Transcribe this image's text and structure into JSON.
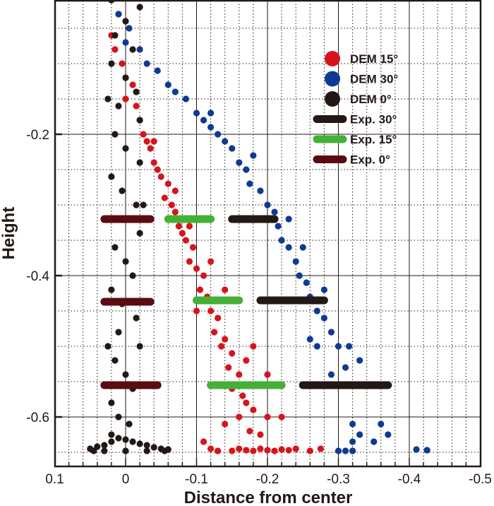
{
  "chart_data": {
    "type": "scatter",
    "xlabel": "Distance from center",
    "ylabel": "Height",
    "xlim": [
      0.1,
      -0.5
    ],
    "ylim": [
      -0.67,
      -0.01
    ],
    "xticks": [
      "0.1",
      "0",
      "-0.1",
      "-0.2",
      "-0.3",
      "-0.4",
      "-0.5"
    ],
    "xtick_values": [
      0.1,
      0,
      -0.1,
      -0.2,
      -0.3,
      -0.4,
      -0.5
    ],
    "yticks": [
      "-0.2",
      "-0.4",
      "-0.6"
    ],
    "ytick_values": [
      -0.2,
      -0.4,
      -0.6
    ],
    "grid": true,
    "legend_position": "top-right",
    "series": [
      {
        "name": "DEM 15°",
        "kind": "points",
        "color": "#d7141c",
        "points": [
          [
            0.01,
            -0.03
          ],
          [
            0.02,
            -0.06
          ],
          [
            0.015,
            -0.08
          ],
          [
            0.005,
            -0.1
          ],
          [
            0.0,
            -0.12
          ],
          [
            -0.01,
            -0.13
          ],
          [
            0.0,
            -0.15
          ],
          [
            -0.015,
            -0.16
          ],
          [
            -0.02,
            -0.18
          ],
          [
            -0.025,
            -0.2
          ],
          [
            -0.03,
            -0.21
          ],
          [
            -0.035,
            -0.22
          ],
          [
            -0.04,
            -0.24
          ],
          [
            -0.045,
            -0.25
          ],
          [
            -0.05,
            -0.26
          ],
          [
            -0.06,
            -0.27
          ],
          [
            -0.055,
            -0.29
          ],
          [
            -0.065,
            -0.3
          ],
          [
            -0.07,
            -0.31
          ],
          [
            -0.075,
            -0.33
          ],
          [
            -0.08,
            -0.34
          ],
          [
            -0.085,
            -0.35
          ],
          [
            -0.095,
            -0.36
          ],
          [
            -0.09,
            -0.38
          ],
          [
            -0.1,
            -0.39
          ],
          [
            -0.11,
            -0.4
          ],
          [
            -0.105,
            -0.42
          ],
          [
            -0.115,
            -0.43
          ],
          [
            -0.12,
            -0.45
          ],
          [
            -0.13,
            -0.46
          ],
          [
            -0.125,
            -0.48
          ],
          [
            -0.14,
            -0.49
          ],
          [
            -0.135,
            -0.5
          ],
          [
            -0.15,
            -0.51
          ],
          [
            -0.145,
            -0.53
          ],
          [
            -0.16,
            -0.54
          ],
          [
            -0.15,
            -0.56
          ],
          [
            -0.165,
            -0.57
          ],
          [
            -0.17,
            -0.58
          ],
          [
            -0.18,
            -0.59
          ],
          [
            -0.2,
            -0.6
          ],
          [
            -0.22,
            -0.6
          ],
          [
            -0.16,
            -0.6
          ],
          [
            -0.14,
            -0.61
          ],
          [
            -0.175,
            -0.62
          ],
          [
            -0.19,
            -0.625
          ],
          [
            -0.11,
            -0.635
          ],
          [
            -0.12,
            -0.645
          ],
          [
            -0.13,
            -0.648
          ],
          [
            -0.15,
            -0.648
          ],
          [
            -0.16,
            -0.645
          ],
          [
            -0.17,
            -0.647
          ],
          [
            -0.18,
            -0.648
          ],
          [
            -0.19,
            -0.645
          ],
          [
            -0.2,
            -0.647
          ],
          [
            -0.21,
            -0.648
          ],
          [
            -0.22,
            -0.646
          ],
          [
            -0.23,
            -0.647
          ],
          [
            -0.24,
            -0.645
          ],
          [
            -0.26,
            -0.648
          ],
          [
            -0.275,
            -0.645
          ],
          [
            -0.32,
            -0.648
          ],
          [
            -0.07,
            -0.28
          ],
          [
            -0.09,
            -0.33
          ],
          [
            -0.12,
            -0.38
          ],
          [
            -0.14,
            -0.42
          ],
          [
            -0.18,
            -0.5
          ],
          [
            -0.2,
            -0.54
          ],
          [
            -0.04,
            -0.21
          ],
          [
            -0.1,
            -0.45
          ],
          [
            -0.17,
            -0.52
          ]
        ]
      },
      {
        "name": "DEM 30°",
        "kind": "points",
        "color": "#0d3a94",
        "points": [
          [
            0.02,
            -0.01
          ],
          [
            0.01,
            -0.03
          ],
          [
            -0.005,
            -0.05
          ],
          [
            0.0,
            -0.07
          ],
          [
            -0.02,
            -0.08
          ],
          [
            -0.03,
            -0.1
          ],
          [
            -0.045,
            -0.11
          ],
          [
            -0.06,
            -0.13
          ],
          [
            -0.07,
            -0.14
          ],
          [
            -0.085,
            -0.15
          ],
          [
            -0.1,
            -0.17
          ],
          [
            -0.11,
            -0.18
          ],
          [
            -0.12,
            -0.19
          ],
          [
            -0.13,
            -0.2
          ],
          [
            -0.14,
            -0.21
          ],
          [
            -0.15,
            -0.22
          ],
          [
            -0.16,
            -0.24
          ],
          [
            -0.17,
            -0.25
          ],
          [
            -0.175,
            -0.27
          ],
          [
            -0.19,
            -0.28
          ],
          [
            -0.2,
            -0.3
          ],
          [
            -0.21,
            -0.31
          ],
          [
            -0.215,
            -0.33
          ],
          [
            -0.22,
            -0.35
          ],
          [
            -0.23,
            -0.36
          ],
          [
            -0.24,
            -0.38
          ],
          [
            -0.245,
            -0.4
          ],
          [
            -0.255,
            -0.41
          ],
          [
            -0.26,
            -0.43
          ],
          [
            -0.27,
            -0.45
          ],
          [
            -0.28,
            -0.46
          ],
          [
            -0.29,
            -0.48
          ],
          [
            -0.3,
            -0.5
          ],
          [
            -0.315,
            -0.5
          ],
          [
            -0.31,
            -0.53
          ],
          [
            -0.33,
            -0.52
          ],
          [
            -0.27,
            -0.5
          ],
          [
            -0.26,
            -0.49
          ],
          [
            -0.29,
            -0.54
          ],
          [
            -0.32,
            -0.61
          ],
          [
            -0.36,
            -0.61
          ],
          [
            -0.37,
            -0.625
          ],
          [
            -0.33,
            -0.625
          ],
          [
            -0.35,
            -0.635
          ],
          [
            -0.32,
            -0.635
          ],
          [
            -0.3,
            -0.648
          ],
          [
            -0.31,
            -0.648
          ],
          [
            -0.32,
            -0.648
          ],
          [
            -0.41,
            -0.646
          ],
          [
            -0.425,
            -0.647
          ],
          [
            -0.23,
            -0.32
          ],
          [
            -0.18,
            -0.23
          ],
          [
            -0.12,
            -0.17
          ],
          [
            -0.25,
            -0.36
          ],
          [
            -0.28,
            -0.42
          ]
        ]
      },
      {
        "name": "DEM 0°",
        "kind": "points",
        "color": "#231815",
        "points": [
          [
            0.02,
            -0.01
          ],
          [
            -0.02,
            -0.02
          ],
          [
            0.0,
            -0.04
          ],
          [
            0.015,
            -0.06
          ],
          [
            -0.01,
            -0.08
          ],
          [
            0.02,
            -0.1
          ],
          [
            0.0,
            -0.12
          ],
          [
            -0.015,
            -0.14
          ],
          [
            0.01,
            -0.16
          ],
          [
            -0.02,
            -0.18
          ],
          [
            0.015,
            -0.2
          ],
          [
            0.0,
            -0.22
          ],
          [
            -0.02,
            -0.24
          ],
          [
            0.02,
            -0.26
          ],
          [
            0.005,
            -0.28
          ],
          [
            -0.015,
            -0.3
          ],
          [
            0.01,
            -0.32
          ],
          [
            -0.02,
            -0.34
          ],
          [
            0.015,
            -0.36
          ],
          [
            0.0,
            -0.38
          ],
          [
            -0.01,
            -0.4
          ],
          [
            0.02,
            -0.42
          ],
          [
            0.005,
            -0.44
          ],
          [
            -0.015,
            -0.46
          ],
          [
            0.01,
            -0.48
          ],
          [
            -0.02,
            -0.5
          ],
          [
            0.015,
            -0.52
          ],
          [
            0.0,
            -0.54
          ],
          [
            -0.01,
            -0.56
          ],
          [
            0.02,
            -0.58
          ],
          [
            0.01,
            -0.6
          ],
          [
            -0.005,
            -0.61
          ],
          [
            0.02,
            -0.625
          ],
          [
            0.05,
            -0.645
          ],
          [
            0.04,
            -0.642
          ],
          [
            0.03,
            -0.64
          ],
          [
            0.02,
            -0.635
          ],
          [
            0.01,
            -0.63
          ],
          [
            0.0,
            -0.632
          ],
          [
            -0.01,
            -0.635
          ],
          [
            -0.02,
            -0.638
          ],
          [
            -0.03,
            -0.64
          ],
          [
            -0.04,
            -0.643
          ],
          [
            -0.05,
            -0.645
          ],
          [
            -0.06,
            -0.646
          ],
          [
            0.045,
            -0.648
          ],
          [
            0.03,
            -0.648
          ],
          [
            0.0,
            -0.648
          ],
          [
            -0.03,
            -0.648
          ],
          [
            -0.055,
            -0.648
          ],
          [
            0.025,
            -0.5
          ],
          [
            -0.025,
            -0.3
          ],
          [
            0.025,
            -0.15
          ]
        ]
      },
      {
        "name": "Exp. 30°",
        "kind": "segments",
        "color": "#231815",
        "segments": [
          [
            -0.15,
            -0.21,
            -0.32
          ],
          [
            -0.19,
            -0.28,
            -0.435
          ],
          [
            -0.25,
            -0.37,
            -0.555
          ]
        ]
      },
      {
        "name": "Exp. 15°",
        "kind": "segments",
        "color": "#44b035",
        "segments": [
          [
            -0.06,
            -0.12,
            -0.32
          ],
          [
            -0.1,
            -0.16,
            -0.435
          ],
          [
            -0.12,
            -0.22,
            -0.555
          ]
        ]
      },
      {
        "name": "Exp. 0°",
        "kind": "segments",
        "color": "#5a0c12",
        "segments": [
          [
            0.03,
            -0.035,
            -0.32
          ],
          [
            0.03,
            -0.035,
            -0.437
          ],
          [
            0.03,
            -0.045,
            -0.555
          ]
        ]
      }
    ]
  }
}
